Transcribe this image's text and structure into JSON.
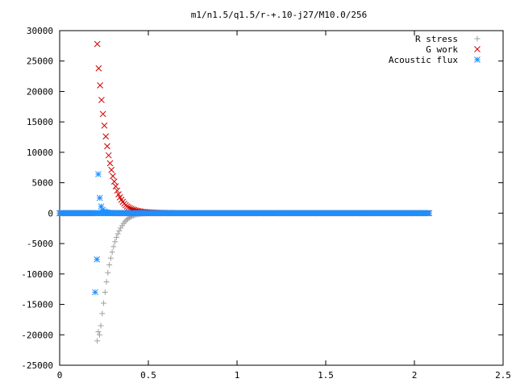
{
  "chart_data": {
    "type": "scatter",
    "title": "m1/n1.5/q1.5/r-+.10-j27/M10.0/256",
    "xlabel": "",
    "ylabel": "",
    "xlim": [
      0,
      2.5
    ],
    "ylim": [
      -25000,
      30000
    ],
    "x_ticks": [
      "0",
      "0.5",
      "1",
      "1.5",
      "2",
      "2.5"
    ],
    "x_tick_values": [
      0,
      0.5,
      1,
      1.5,
      2,
      2.5
    ],
    "y_ticks": [
      "30000",
      "25000",
      "20000",
      "15000",
      "10000",
      "5000",
      "0",
      "-5000",
      "-10000",
      "-15000",
      "-20000",
      "-25000"
    ],
    "y_tick_values": [
      30000,
      25000,
      20000,
      15000,
      10000,
      5000,
      0,
      -5000,
      -10000,
      -15000,
      -20000,
      -25000
    ],
    "grid": false,
    "legend_position": "top-right",
    "series": [
      {
        "name": "R stress",
        "marker": "plus",
        "color": "#a0a0a0",
        "points": [
          [
            0.212,
            -21000
          ],
          [
            0.218,
            -19500
          ],
          [
            0.225,
            -20000
          ],
          [
            0.232,
            -18500
          ],
          [
            0.24,
            -16500
          ],
          [
            0.248,
            -14800
          ],
          [
            0.256,
            -13000
          ],
          [
            0.264,
            -11300
          ],
          [
            0.272,
            -9800
          ],
          [
            0.28,
            -8500
          ],
          [
            0.288,
            -7400
          ],
          [
            0.296,
            -6400
          ],
          [
            0.304,
            -5500
          ],
          [
            0.312,
            -4700
          ],
          [
            0.32,
            -4000
          ],
          [
            0.328,
            -3400
          ],
          [
            0.336,
            -2900
          ],
          [
            0.344,
            -2450
          ],
          [
            0.352,
            -2050
          ],
          [
            0.36,
            -1700
          ],
          [
            0.368,
            -1400
          ],
          [
            0.376,
            -1150
          ],
          [
            0.384,
            -950
          ],
          [
            0.392,
            -780
          ],
          [
            0.4,
            -640
          ],
          [
            0.408,
            -520
          ],
          [
            0.416,
            -420
          ],
          [
            0.424,
            -340
          ],
          [
            0.432,
            -270
          ],
          [
            0.44,
            -210
          ],
          [
            0.448,
            -160
          ],
          [
            0.456,
            -120
          ],
          [
            0.464,
            -90
          ],
          [
            0.472,
            -65
          ],
          [
            0.48,
            -45
          ]
        ]
      },
      {
        "name": "G work",
        "marker": "cross",
        "color": "#d00000",
        "points": [
          [
            0.212,
            27800
          ],
          [
            0.22,
            23800
          ],
          [
            0.228,
            21000
          ],
          [
            0.236,
            18600
          ],
          [
            0.244,
            16300
          ],
          [
            0.252,
            14400
          ],
          [
            0.26,
            12600
          ],
          [
            0.268,
            11000
          ],
          [
            0.276,
            9500
          ],
          [
            0.284,
            8200
          ],
          [
            0.292,
            7100
          ],
          [
            0.3,
            6100
          ],
          [
            0.308,
            5200
          ],
          [
            0.316,
            4400
          ],
          [
            0.324,
            3700
          ],
          [
            0.332,
            3100
          ],
          [
            0.34,
            2600
          ],
          [
            0.348,
            2200
          ],
          [
            0.356,
            1850
          ],
          [
            0.364,
            1550
          ],
          [
            0.372,
            1300
          ],
          [
            0.38,
            1100
          ],
          [
            0.388,
            950
          ],
          [
            0.396,
            820
          ],
          [
            0.404,
            700
          ],
          [
            0.412,
            600
          ],
          [
            0.42,
            510
          ],
          [
            0.428,
            440
          ],
          [
            0.436,
            380
          ],
          [
            0.444,
            330
          ],
          [
            0.452,
            290
          ],
          [
            0.46,
            250
          ],
          [
            0.47,
            220
          ],
          [
            0.48,
            195
          ],
          [
            0.49,
            170
          ],
          [
            0.5,
            150
          ],
          [
            0.51,
            130
          ],
          [
            0.52,
            115
          ],
          [
            0.53,
            100
          ],
          [
            0.54,
            88
          ],
          [
            0.55,
            77
          ],
          [
            0.56,
            67
          ],
          [
            0.57,
            58
          ],
          [
            0.58,
            50
          ],
          [
            0.59,
            43
          ],
          [
            0.6,
            37
          ],
          [
            0.61,
            32
          ],
          [
            0.62,
            27
          ],
          [
            0.63,
            23
          ]
        ]
      },
      {
        "name": "Acoustic flux",
        "marker": "star",
        "color": "#1e90ff",
        "points": [
          [
            0.2,
            -13000
          ],
          [
            0.21,
            -7600
          ],
          [
            0.218,
            6400
          ],
          [
            0.226,
            2500
          ],
          [
            0.234,
            1100
          ],
          [
            0.242,
            550
          ],
          [
            0.25,
            300
          ],
          [
            0.258,
            180
          ],
          [
            0.266,
            110
          ],
          [
            0.274,
            70
          ],
          [
            0.282,
            45
          ],
          [
            0.29,
            30
          ],
          [
            0.298,
            20
          ]
        ]
      }
    ]
  }
}
